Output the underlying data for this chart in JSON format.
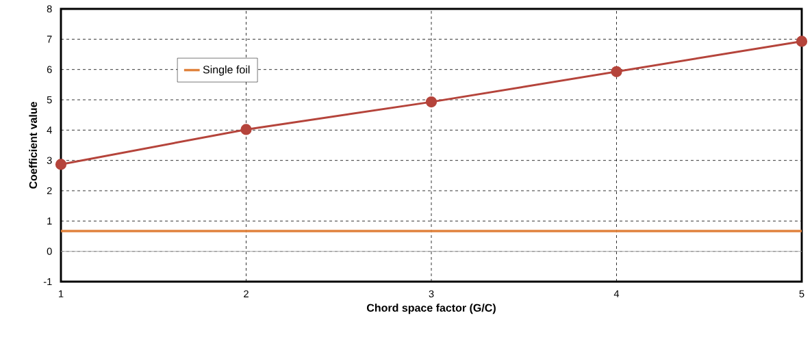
{
  "chart_data": {
    "type": "line",
    "xlabel": "Chord space factor (G/C)",
    "ylabel": "Coefficient value",
    "xlim": [
      1,
      5
    ],
    "ylim": [
      -1,
      8
    ],
    "xticks": [
      1,
      2,
      3,
      4,
      5
    ],
    "yticks": [
      -1,
      0,
      1,
      2,
      3,
      4,
      5,
      6,
      7,
      8
    ],
    "grid": true,
    "legend": "top left",
    "line_style": "solid",
    "series": [
      {
        "name": "Single foil",
        "color": "#e0823d",
        "x": [
          1,
          5
        ],
        "values": [
          0.67,
          0.67
        ],
        "marker": "none"
      },
      {
        "color": "#b5443b",
        "x": [
          1,
          2,
          3,
          4,
          5
        ],
        "values": [
          2.87,
          4.02,
          4.93,
          5.93,
          6.93
        ],
        "marker": "circle"
      }
    ]
  }
}
